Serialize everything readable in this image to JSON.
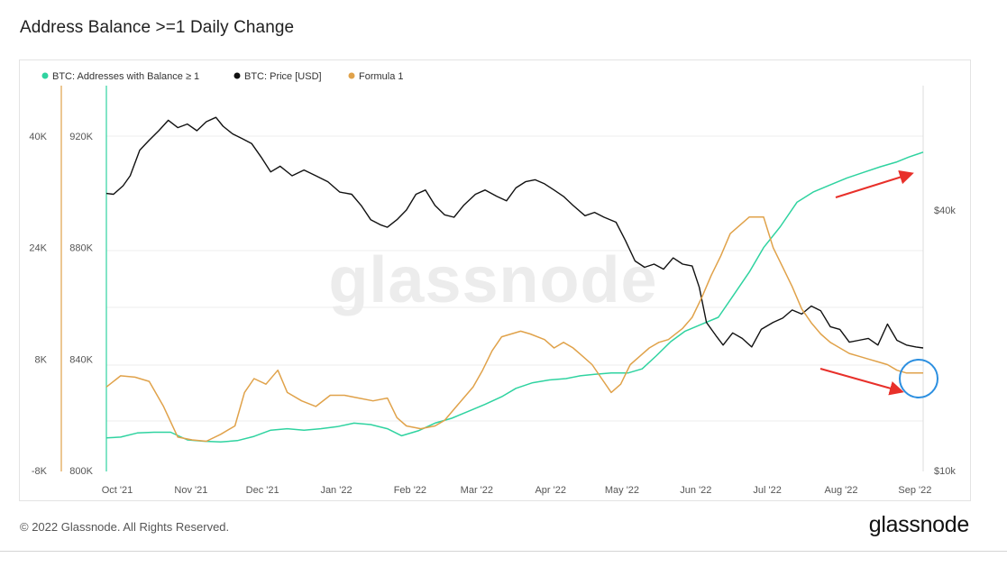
{
  "title": "Address Balance >=1 Daily Change",
  "footer": {
    "copyright": "© 2022 Glassnode. All Rights Reserved.",
    "brand": "glassnode"
  },
  "watermark": "glassnode",
  "chart_data": {
    "type": "line",
    "grid": true,
    "legend_placement": "top-left",
    "series": [
      {
        "name": "BTC: Addresses with Balance ≥ 1",
        "color": "#2fd3a0",
        "axis": "left-outer",
        "points": [
          [
            0,
            -3300
          ],
          [
            6,
            -3200
          ],
          [
            13,
            -2600
          ],
          [
            20,
            -2500
          ],
          [
            27,
            -2500
          ],
          [
            34,
            -3600
          ],
          [
            41,
            -3800
          ],
          [
            48,
            -3900
          ],
          [
            55,
            -3700
          ],
          [
            62,
            -3100
          ],
          [
            69,
            -2200
          ],
          [
            76,
            -2000
          ],
          [
            83,
            -2200
          ],
          [
            90,
            -2000
          ],
          [
            97,
            -1700
          ],
          [
            104,
            -1200
          ],
          [
            111,
            -1400
          ],
          [
            118,
            -2000
          ],
          [
            124,
            -3000
          ],
          [
            131,
            -2300
          ],
          [
            138,
            -1200
          ],
          [
            145,
            -500
          ],
          [
            152,
            500
          ],
          [
            159,
            1500
          ],
          [
            166,
            2600
          ],
          [
            172,
            3800
          ],
          [
            179,
            4600
          ],
          [
            186,
            5000
          ],
          [
            193,
            5200
          ],
          [
            199,
            5600
          ],
          [
            205,
            5800
          ],
          [
            212,
            6000
          ],
          [
            219,
            6000
          ],
          [
            225,
            6600
          ],
          [
            231,
            8500
          ],
          [
            237,
            10500
          ],
          [
            243,
            12000
          ],
          [
            250,
            13000
          ],
          [
            257,
            14000
          ],
          [
            263,
            17000
          ],
          [
            270,
            20500
          ],
          [
            276,
            24000
          ],
          [
            283,
            27000
          ],
          [
            290,
            30500
          ],
          [
            297,
            32000
          ],
          [
            304,
            33000
          ],
          [
            311,
            34000
          ],
          [
            318,
            34800
          ],
          [
            325,
            35600
          ],
          [
            332,
            36300
          ],
          [
            337,
            37000
          ],
          [
            343,
            37700
          ]
        ]
      },
      {
        "name": "BTC: Price [USD]",
        "color": "#111111",
        "axis": "right",
        "points": [
          [
            0,
            43700
          ],
          [
            3,
            43500
          ],
          [
            7,
            45500
          ],
          [
            10,
            48000
          ],
          [
            14,
            55000
          ],
          [
            18,
            58000
          ],
          [
            22,
            61000
          ],
          [
            26,
            64500
          ],
          [
            30,
            62000
          ],
          [
            34,
            63200
          ],
          [
            38,
            61000
          ],
          [
            42,
            64000
          ],
          [
            46,
            65500
          ],
          [
            49,
            62500
          ],
          [
            53,
            60000
          ],
          [
            57,
            58500
          ],
          [
            61,
            57000
          ],
          [
            65,
            53000
          ],
          [
            69,
            49000
          ],
          [
            73,
            50500
          ],
          [
            78,
            48000
          ],
          [
            83,
            49500
          ],
          [
            88,
            48000
          ],
          [
            93,
            46500
          ],
          [
            98,
            44000
          ],
          [
            103,
            43500
          ],
          [
            107,
            41000
          ],
          [
            111,
            38000
          ],
          [
            115,
            37000
          ],
          [
            118,
            36500
          ],
          [
            122,
            38000
          ],
          [
            126,
            40000
          ],
          [
            130,
            43500
          ],
          [
            134,
            44500
          ],
          [
            138,
            41000
          ],
          [
            142,
            39000
          ],
          [
            146,
            38500
          ],
          [
            150,
            41000
          ],
          [
            155,
            43500
          ],
          [
            159,
            44500
          ],
          [
            164,
            43000
          ],
          [
            168,
            42000
          ],
          [
            172,
            45000
          ],
          [
            176,
            46500
          ],
          [
            180,
            47000
          ],
          [
            184,
            46000
          ],
          [
            188,
            44500
          ],
          [
            192,
            43000
          ],
          [
            196,
            41000
          ],
          [
            201,
            38800
          ],
          [
            205,
            39500
          ],
          [
            209,
            38500
          ],
          [
            214,
            37500
          ],
          [
            218,
            34000
          ],
          [
            222,
            30500
          ],
          [
            226,
            29500
          ],
          [
            230,
            30000
          ],
          [
            234,
            29200
          ],
          [
            238,
            31000
          ],
          [
            242,
            30000
          ],
          [
            246,
            29700
          ],
          [
            249,
            26500
          ],
          [
            252,
            22000
          ],
          [
            256,
            20500
          ],
          [
            259,
            19500
          ],
          [
            263,
            20800
          ],
          [
            267,
            20200
          ],
          [
            271,
            19300
          ],
          [
            275,
            21200
          ],
          [
            280,
            22000
          ],
          [
            284,
            22500
          ],
          [
            288,
            23500
          ],
          [
            292,
            23000
          ],
          [
            296,
            24000
          ],
          [
            300,
            23400
          ],
          [
            304,
            21500
          ],
          [
            308,
            21200
          ],
          [
            312,
            19800
          ],
          [
            316,
            20000
          ],
          [
            320,
            20200
          ],
          [
            324,
            19500
          ],
          [
            328,
            21800
          ],
          [
            332,
            20000
          ],
          [
            336,
            19500
          ],
          [
            340,
            19300
          ],
          [
            343,
            19200
          ]
        ]
      },
      {
        "name": "Formula 1",
        "color": "#e0a24a",
        "axis": "left-inner",
        "points": [
          [
            0,
            830000
          ],
          [
            6,
            834000
          ],
          [
            12,
            833500
          ],
          [
            18,
            832000
          ],
          [
            24,
            823000
          ],
          [
            30,
            812000
          ],
          [
            36,
            811000
          ],
          [
            42,
            810500
          ],
          [
            48,
            813000
          ],
          [
            54,
            816000
          ],
          [
            58,
            828000
          ],
          [
            62,
            833000
          ],
          [
            67,
            831000
          ],
          [
            72,
            836000
          ],
          [
            76,
            828000
          ],
          [
            82,
            825000
          ],
          [
            88,
            823000
          ],
          [
            94,
            827000
          ],
          [
            100,
            827000
          ],
          [
            106,
            826000
          ],
          [
            112,
            825000
          ],
          [
            118,
            826000
          ],
          [
            122,
            819000
          ],
          [
            126,
            816000
          ],
          [
            132,
            815000
          ],
          [
            138,
            816000
          ],
          [
            142,
            818000
          ],
          [
            146,
            822000
          ],
          [
            150,
            826000
          ],
          [
            154,
            830000
          ],
          [
            158,
            836000
          ],
          [
            162,
            843000
          ],
          [
            166,
            848000
          ],
          [
            170,
            849000
          ],
          [
            174,
            850000
          ],
          [
            178,
            849000
          ],
          [
            184,
            847000
          ],
          [
            188,
            844000
          ],
          [
            192,
            846000
          ],
          [
            196,
            844000
          ],
          [
            200,
            841000
          ],
          [
            204,
            838000
          ],
          [
            208,
            833000
          ],
          [
            212,
            828000
          ],
          [
            216,
            831000
          ],
          [
            220,
            838000
          ],
          [
            224,
            841000
          ],
          [
            228,
            844000
          ],
          [
            232,
            846000
          ],
          [
            236,
            847000
          ],
          [
            242,
            851000
          ],
          [
            246,
            855000
          ],
          [
            250,
            862000
          ],
          [
            254,
            870000
          ],
          [
            258,
            877000
          ],
          [
            262,
            885000
          ],
          [
            266,
            888000
          ],
          [
            270,
            891000
          ],
          [
            276,
            891000
          ],
          [
            280,
            880000
          ],
          [
            284,
            873000
          ],
          [
            288,
            866000
          ],
          [
            292,
            858000
          ],
          [
            296,
            853000
          ],
          [
            300,
            849000
          ],
          [
            304,
            846000
          ],
          [
            308,
            844000
          ],
          [
            312,
            842000
          ],
          [
            316,
            841000
          ],
          [
            320,
            840000
          ],
          [
            324,
            839000
          ],
          [
            328,
            838000
          ],
          [
            332,
            836000
          ],
          [
            336,
            835000
          ],
          [
            340,
            835000
          ],
          [
            343,
            835000
          ]
        ]
      }
    ],
    "x_tick_labels": [
      "Oct '21",
      "Nov '21",
      "Dec '21",
      "Jan '22",
      "Feb '22",
      "Mar '22",
      "Apr '22",
      "May '22",
      "Jun '22",
      "Jul '22",
      "Aug '22",
      "Sep '22"
    ],
    "x_tick_days": [
      0,
      31,
      61,
      92,
      123,
      151,
      182,
      212,
      243,
      273,
      304,
      335
    ],
    "left_outer_axis": {
      "ticks": [
        "40K",
        "24K",
        "8K",
        "-8K"
      ],
      "values": [
        40000,
        24000,
        8000,
        -8000
      ]
    },
    "left_inner_axis": {
      "ticks": [
        "920K",
        "880K",
        "840K",
        "800K"
      ],
      "values": [
        920000,
        880000,
        840000,
        800000
      ]
    },
    "right_axis": {
      "scale": "log",
      "ticks": [
        "$40k",
        "$10k"
      ],
      "values": [
        40000,
        10000
      ]
    },
    "annotations": {
      "arrow_color": "#e8302a",
      "circle_color": "#2c8fe0"
    }
  }
}
